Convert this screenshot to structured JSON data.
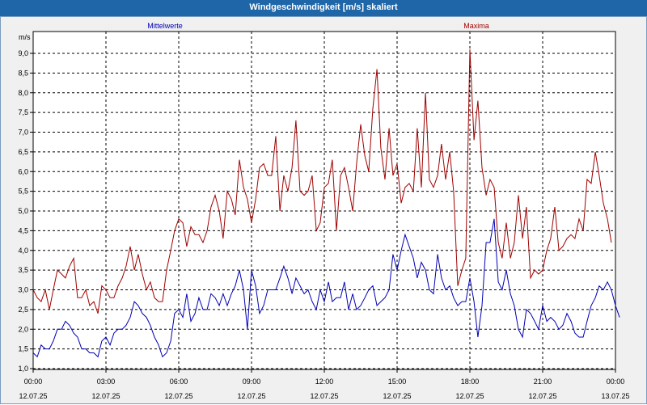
{
  "window": {
    "title": "Windgeschwindigkeit [m/s] skaliert"
  },
  "chart_data": {
    "type": "line",
    "ylabel": "m/s",
    "ylim": [
      1.0,
      9.0
    ],
    "yticks": [
      "1,0",
      "1,5",
      "2,0",
      "2,5",
      "3,0",
      "3,5",
      "4,0",
      "4,5",
      "5,0",
      "5,5",
      "6,0",
      "6,5",
      "7,0",
      "7,5",
      "8,0",
      "8,5",
      "9,0"
    ],
    "xlim": [
      0,
      24
    ],
    "xticks": [
      {
        "time": "00:00",
        "date": "12.07.25"
      },
      {
        "time": "03:00",
        "date": "12.07.25"
      },
      {
        "time": "06:00",
        "date": "12.07.25"
      },
      {
        "time": "09:00",
        "date": "12.07.25"
      },
      {
        "time": "12:00",
        "date": "12.07.25"
      },
      {
        "time": "15:00",
        "date": "12.07.25"
      },
      {
        "time": "18:00",
        "date": "12.07.25"
      },
      {
        "time": "21:00",
        "date": "12.07.25"
      },
      {
        "time": "00:00",
        "date": "13.07.25"
      }
    ],
    "grid": true,
    "series": [
      {
        "name": "Mittelwerte",
        "color": "#0000b4",
        "values": [
          [
            0.0,
            1.4
          ],
          [
            0.17,
            1.3
          ],
          [
            0.33,
            1.6
          ],
          [
            0.5,
            1.5
          ],
          [
            0.67,
            1.5
          ],
          [
            0.83,
            1.7
          ],
          [
            1.0,
            2.0
          ],
          [
            1.17,
            2.0
          ],
          [
            1.33,
            2.2
          ],
          [
            1.5,
            2.1
          ],
          [
            1.67,
            1.9
          ],
          [
            1.83,
            1.8
          ],
          [
            2.0,
            1.5
          ],
          [
            2.17,
            1.5
          ],
          [
            2.33,
            1.4
          ],
          [
            2.5,
            1.4
          ],
          [
            2.67,
            1.3
          ],
          [
            2.83,
            1.7
          ],
          [
            3.0,
            1.8
          ],
          [
            3.17,
            1.6
          ],
          [
            3.33,
            1.9
          ],
          [
            3.5,
            2.0
          ],
          [
            3.67,
            2.0
          ],
          [
            3.83,
            2.1
          ],
          [
            4.0,
            2.3
          ],
          [
            4.17,
            2.7
          ],
          [
            4.33,
            2.6
          ],
          [
            4.5,
            2.4
          ],
          [
            4.67,
            2.3
          ],
          [
            4.83,
            2.1
          ],
          [
            5.0,
            1.8
          ],
          [
            5.17,
            1.6
          ],
          [
            5.33,
            1.3
          ],
          [
            5.5,
            1.4
          ],
          [
            5.67,
            1.7
          ],
          [
            5.83,
            2.4
          ],
          [
            6.0,
            2.5
          ],
          [
            6.17,
            2.3
          ],
          [
            6.33,
            2.9
          ],
          [
            6.5,
            2.2
          ],
          [
            6.67,
            2.4
          ],
          [
            6.83,
            2.8
          ],
          [
            7.0,
            2.5
          ],
          [
            7.17,
            2.5
          ],
          [
            7.33,
            2.9
          ],
          [
            7.5,
            2.8
          ],
          [
            7.67,
            2.6
          ],
          [
            7.83,
            2.9
          ],
          [
            8.0,
            2.6
          ],
          [
            8.17,
            2.9
          ],
          [
            8.33,
            3.1
          ],
          [
            8.5,
            3.5
          ],
          [
            8.67,
            3.0
          ],
          [
            8.83,
            2.0
          ],
          [
            9.0,
            3.5
          ],
          [
            9.17,
            3.1
          ],
          [
            9.33,
            2.4
          ],
          [
            9.5,
            2.6
          ],
          [
            9.67,
            3.0
          ],
          [
            9.83,
            3.0
          ],
          [
            10.0,
            3.0
          ],
          [
            10.17,
            3.3
          ],
          [
            10.33,
            3.6
          ],
          [
            10.5,
            3.3
          ],
          [
            10.67,
            2.9
          ],
          [
            10.83,
            3.3
          ],
          [
            11.0,
            3.1
          ],
          [
            11.17,
            2.9
          ],
          [
            11.33,
            3.0
          ],
          [
            11.5,
            2.7
          ],
          [
            11.67,
            2.5
          ],
          [
            11.83,
            3.0
          ],
          [
            12.0,
            2.7
          ],
          [
            12.17,
            3.2
          ],
          [
            12.33,
            2.7
          ],
          [
            12.5,
            2.8
          ],
          [
            12.67,
            2.8
          ],
          [
            12.83,
            3.2
          ],
          [
            13.0,
            2.5
          ],
          [
            13.17,
            2.9
          ],
          [
            13.33,
            2.5
          ],
          [
            13.5,
            2.6
          ],
          [
            13.67,
            2.8
          ],
          [
            13.83,
            3.0
          ],
          [
            14.0,
            3.1
          ],
          [
            14.17,
            2.6
          ],
          [
            14.33,
            2.7
          ],
          [
            14.5,
            2.8
          ],
          [
            14.67,
            3.0
          ],
          [
            14.83,
            3.9
          ],
          [
            15.0,
            3.5
          ],
          [
            15.17,
            4.0
          ],
          [
            15.33,
            4.4
          ],
          [
            15.5,
            4.1
          ],
          [
            15.67,
            3.8
          ],
          [
            15.83,
            3.3
          ],
          [
            16.0,
            3.7
          ],
          [
            16.17,
            3.5
          ],
          [
            16.33,
            3.0
          ],
          [
            16.5,
            2.9
          ],
          [
            16.67,
            3.9
          ],
          [
            16.83,
            3.3
          ],
          [
            17.0,
            3.0
          ],
          [
            17.17,
            3.1
          ],
          [
            17.33,
            2.8
          ],
          [
            17.5,
            2.6
          ],
          [
            17.67,
            2.7
          ],
          [
            17.83,
            2.7
          ],
          [
            18.0,
            3.3
          ],
          [
            18.17,
            2.7
          ],
          [
            18.33,
            1.8
          ],
          [
            18.5,
            2.6
          ],
          [
            18.67,
            4.2
          ],
          [
            18.83,
            4.2
          ],
          [
            19.0,
            4.8
          ],
          [
            19.17,
            3.2
          ],
          [
            19.33,
            3.0
          ],
          [
            19.5,
            3.5
          ],
          [
            19.67,
            2.9
          ],
          [
            19.83,
            2.6
          ],
          [
            20.0,
            2.0
          ],
          [
            20.17,
            1.8
          ],
          [
            20.33,
            2.5
          ],
          [
            20.5,
            2.4
          ],
          [
            20.67,
            2.2
          ],
          [
            20.83,
            2.0
          ],
          [
            21.0,
            2.6
          ],
          [
            21.17,
            2.2
          ],
          [
            21.33,
            2.3
          ],
          [
            21.5,
            2.2
          ],
          [
            21.67,
            2.0
          ],
          [
            21.83,
            2.1
          ],
          [
            22.0,
            2.4
          ],
          [
            22.17,
            2.2
          ],
          [
            22.33,
            1.9
          ],
          [
            22.5,
            1.8
          ],
          [
            22.67,
            1.8
          ],
          [
            22.83,
            2.2
          ],
          [
            23.0,
            2.6
          ],
          [
            23.17,
            2.8
          ],
          [
            23.33,
            3.1
          ],
          [
            23.5,
            3.0
          ],
          [
            23.67,
            3.2
          ],
          [
            23.83,
            3.0
          ],
          [
            24.0,
            2.6
          ],
          [
            24.17,
            2.3
          ]
        ]
      },
      {
        "name": "Maxima",
        "color": "#a00000",
        "values": [
          [
            0.0,
            3.0
          ],
          [
            0.17,
            2.8
          ],
          [
            0.33,
            2.7
          ],
          [
            0.5,
            3.0
          ],
          [
            0.67,
            2.5
          ],
          [
            0.83,
            3.0
          ],
          [
            1.0,
            3.5
          ],
          [
            1.17,
            3.4
          ],
          [
            1.33,
            3.3
          ],
          [
            1.5,
            3.6
          ],
          [
            1.67,
            3.8
          ],
          [
            1.83,
            2.8
          ],
          [
            2.0,
            2.8
          ],
          [
            2.17,
            3.0
          ],
          [
            2.33,
            2.6
          ],
          [
            2.5,
            2.7
          ],
          [
            2.67,
            2.4
          ],
          [
            2.83,
            3.1
          ],
          [
            3.0,
            3.0
          ],
          [
            3.17,
            2.8
          ],
          [
            3.33,
            2.8
          ],
          [
            3.5,
            3.1
          ],
          [
            3.67,
            3.3
          ],
          [
            3.83,
            3.6
          ],
          [
            4.0,
            4.1
          ],
          [
            4.17,
            3.5
          ],
          [
            4.33,
            3.9
          ],
          [
            4.5,
            3.4
          ],
          [
            4.67,
            3.0
          ],
          [
            4.83,
            3.2
          ],
          [
            5.0,
            2.8
          ],
          [
            5.17,
            2.7
          ],
          [
            5.33,
            2.7
          ],
          [
            5.5,
            3.5
          ],
          [
            5.67,
            4.0
          ],
          [
            5.83,
            4.5
          ],
          [
            6.0,
            4.8
          ],
          [
            6.17,
            4.7
          ],
          [
            6.33,
            4.1
          ],
          [
            6.5,
            4.6
          ],
          [
            6.67,
            4.4
          ],
          [
            6.83,
            4.4
          ],
          [
            7.0,
            4.2
          ],
          [
            7.17,
            4.5
          ],
          [
            7.33,
            5.1
          ],
          [
            7.5,
            5.4
          ],
          [
            7.67,
            5.0
          ],
          [
            7.83,
            4.3
          ],
          [
            8.0,
            5.5
          ],
          [
            8.17,
            5.3
          ],
          [
            8.33,
            4.9
          ],
          [
            8.5,
            6.3
          ],
          [
            8.67,
            5.6
          ],
          [
            8.83,
            5.3
          ],
          [
            9.0,
            4.7
          ],
          [
            9.17,
            5.3
          ],
          [
            9.33,
            6.1
          ],
          [
            9.5,
            6.2
          ],
          [
            9.67,
            5.9
          ],
          [
            9.83,
            5.9
          ],
          [
            10.0,
            6.9
          ],
          [
            10.17,
            5.0
          ],
          [
            10.33,
            5.9
          ],
          [
            10.5,
            5.5
          ],
          [
            10.67,
            6.1
          ],
          [
            10.83,
            7.3
          ],
          [
            11.0,
            5.5
          ],
          [
            11.17,
            5.4
          ],
          [
            11.33,
            5.5
          ],
          [
            11.5,
            5.9
          ],
          [
            11.67,
            4.5
          ],
          [
            11.83,
            4.7
          ],
          [
            12.0,
            5.6
          ],
          [
            12.17,
            5.7
          ],
          [
            12.33,
            6.3
          ],
          [
            12.5,
            4.5
          ],
          [
            12.67,
            5.9
          ],
          [
            12.83,
            6.1
          ],
          [
            13.0,
            5.6
          ],
          [
            13.17,
            5.0
          ],
          [
            13.33,
            6.2
          ],
          [
            13.5,
            7.2
          ],
          [
            13.67,
            6.4
          ],
          [
            13.83,
            6.0
          ],
          [
            14.0,
            7.6
          ],
          [
            14.17,
            8.6
          ],
          [
            14.33,
            6.6
          ],
          [
            14.5,
            5.8
          ],
          [
            14.67,
            7.1
          ],
          [
            14.83,
            5.9
          ],
          [
            15.0,
            6.2
          ],
          [
            15.17,
            5.2
          ],
          [
            15.33,
            5.6
          ],
          [
            15.5,
            5.7
          ],
          [
            15.67,
            5.5
          ],
          [
            15.83,
            7.1
          ],
          [
            16.0,
            5.6
          ],
          [
            16.17,
            8.0
          ],
          [
            16.33,
            5.8
          ],
          [
            16.5,
            5.6
          ],
          [
            16.67,
            5.9
          ],
          [
            16.83,
            6.7
          ],
          [
            17.0,
            5.8
          ],
          [
            17.17,
            6.5
          ],
          [
            17.33,
            5.5
          ],
          [
            17.5,
            3.1
          ],
          [
            17.67,
            3.5
          ],
          [
            17.83,
            3.8
          ],
          [
            18.0,
            9.1
          ],
          [
            18.17,
            6.8
          ],
          [
            18.33,
            7.8
          ],
          [
            18.5,
            6.1
          ],
          [
            18.67,
            5.4
          ],
          [
            18.83,
            5.8
          ],
          [
            19.0,
            5.6
          ],
          [
            19.17,
            4.2
          ],
          [
            19.33,
            3.8
          ],
          [
            19.5,
            4.7
          ],
          [
            19.67,
            3.8
          ],
          [
            19.83,
            4.2
          ],
          [
            20.0,
            5.4
          ],
          [
            20.17,
            4.3
          ],
          [
            20.33,
            5.1
          ],
          [
            20.5,
            3.3
          ],
          [
            20.67,
            3.5
          ],
          [
            20.83,
            3.4
          ],
          [
            21.0,
            3.5
          ],
          [
            21.17,
            4.0
          ],
          [
            21.33,
            4.3
          ],
          [
            21.5,
            5.1
          ],
          [
            21.67,
            4.0
          ],
          [
            21.83,
            4.1
          ],
          [
            22.0,
            4.3
          ],
          [
            22.17,
            4.4
          ],
          [
            22.33,
            4.3
          ],
          [
            22.5,
            4.8
          ],
          [
            22.67,
            4.5
          ],
          [
            22.83,
            5.8
          ],
          [
            23.0,
            5.7
          ],
          [
            23.17,
            6.5
          ],
          [
            23.33,
            5.9
          ],
          [
            23.5,
            5.2
          ],
          [
            23.67,
            4.8
          ],
          [
            23.83,
            4.2
          ]
        ]
      }
    ]
  }
}
